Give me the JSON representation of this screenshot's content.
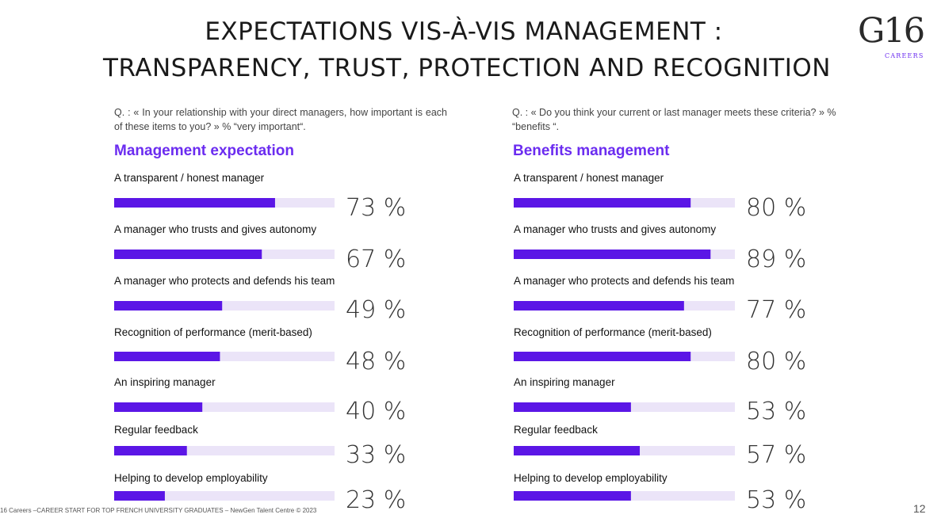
{
  "title_line1": "EXPECTATIONS VIS-À-VIS MANAGEMENT :",
  "title_line2": "TRANSPARENCY, TRUST, PROTECTION AND RECOGNITION",
  "logo": {
    "mark": "G16",
    "sub": "CAREERS"
  },
  "colors": {
    "accent": "#6b2cf0",
    "bar": "#5b16e6",
    "track": "#ebe4f8"
  },
  "left": {
    "question": "Q. : « In your relationship with your direct managers, how important is each of these items to you? » % “very important“.",
    "title": "Management expectation"
  },
  "right": {
    "question": "Q. : « Do you think your current or last manager meets these criteria? » % “benefits “.",
    "title": "Benefits management"
  },
  "footer": "16 Careers –CAREER START FOR TOP FRENCH UNIVERSITY GRADUATES – NewGen Talent Centre © 2023",
  "page_number": "12",
  "chart_data": [
    {
      "type": "bar",
      "orientation": "horizontal",
      "title": "Management expectation",
      "unit": "%",
      "xlim": [
        0,
        100
      ],
      "categories": [
        "A transparent / honest manager",
        "A manager who trusts and gives autonomy",
        "A manager who protects and defends his team",
        "Recognition of performance (merit-based)",
        "An inspiring manager",
        "Regular feedback",
        "Helping to develop employability"
      ],
      "values": [
        73,
        67,
        49,
        48,
        40,
        33,
        23
      ],
      "value_labels": [
        "73 %",
        "67 %",
        "49 %",
        "48 %",
        "40 %",
        "33 %",
        "23 %"
      ]
    },
    {
      "type": "bar",
      "orientation": "horizontal",
      "title": "Benefits management",
      "unit": "%",
      "xlim": [
        0,
        100
      ],
      "categories": [
        "A transparent / honest manager",
        "A manager who trusts and gives autonomy",
        "A manager who protects and defends his team",
        "Recognition of performance (merit-based)",
        "An inspiring manager",
        "Regular feedback",
        "Helping to develop employability"
      ],
      "values": [
        80,
        89,
        77,
        80,
        53,
        57,
        53
      ],
      "value_labels": [
        "80 %",
        "89 %",
        "77 %",
        "80 %",
        "53 %",
        "57 %",
        "53 %"
      ]
    }
  ]
}
